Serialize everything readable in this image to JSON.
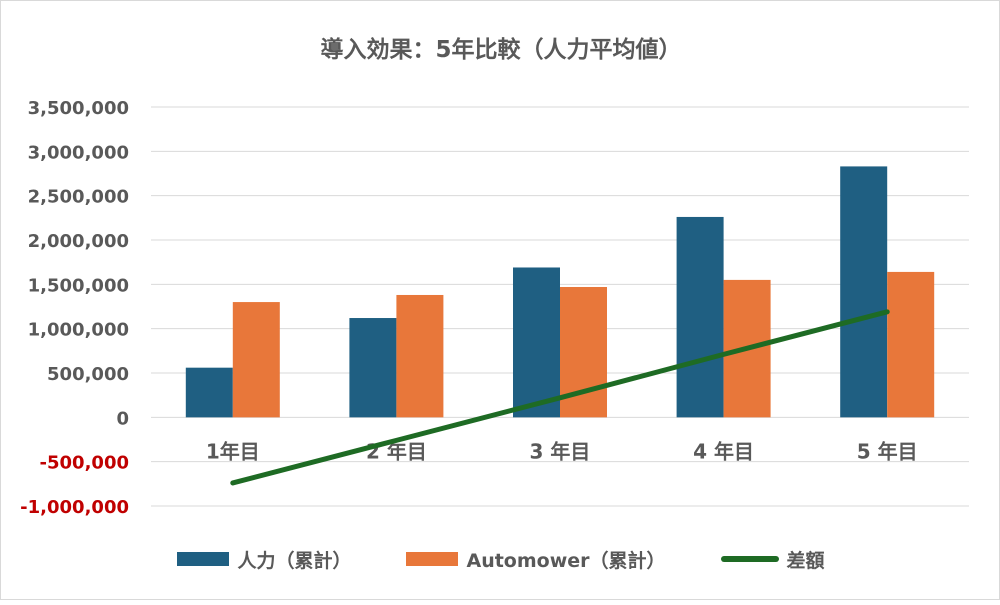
{
  "chart_data": {
    "type": "bar",
    "title": "導入効果：5年比較（人力平均値）",
    "categories": [
      "1年目",
      "2 年目",
      "3 年目",
      "4 年目",
      "5 年目"
    ],
    "ylim": [
      -1000000,
      3500000
    ],
    "yticks": [
      3500000,
      3000000,
      2500000,
      2000000,
      1500000,
      1000000,
      500000,
      0,
      -500000,
      -1000000
    ],
    "ytick_labels": [
      "3,500,000",
      "3,000,000",
      "2,500,000",
      "2,000,000",
      "1,500,000",
      "1,000,000",
      "500,000",
      "0",
      "-500,000",
      "-1,000,000"
    ],
    "grid": true,
    "legend_position": "bottom",
    "series": [
      {
        "name": "人力（累計）",
        "type": "bar",
        "color": "#1f5f82",
        "values": [
          560000,
          1120000,
          1690000,
          2260000,
          2830000
        ]
      },
      {
        "name": "Automower（累計）",
        "type": "bar",
        "color": "#e8773a",
        "values": [
          1300000,
          1380000,
          1470000,
          1550000,
          1640000
        ]
      },
      {
        "name": "差額",
        "type": "line",
        "color": "#1e6b24",
        "values": [
          -740000,
          -260000,
          220000,
          710000,
          1190000
        ]
      }
    ],
    "colors": {
      "negative_tick": "#c00000",
      "axis_text": "#595959",
      "grid": "#d9d9d9"
    }
  }
}
